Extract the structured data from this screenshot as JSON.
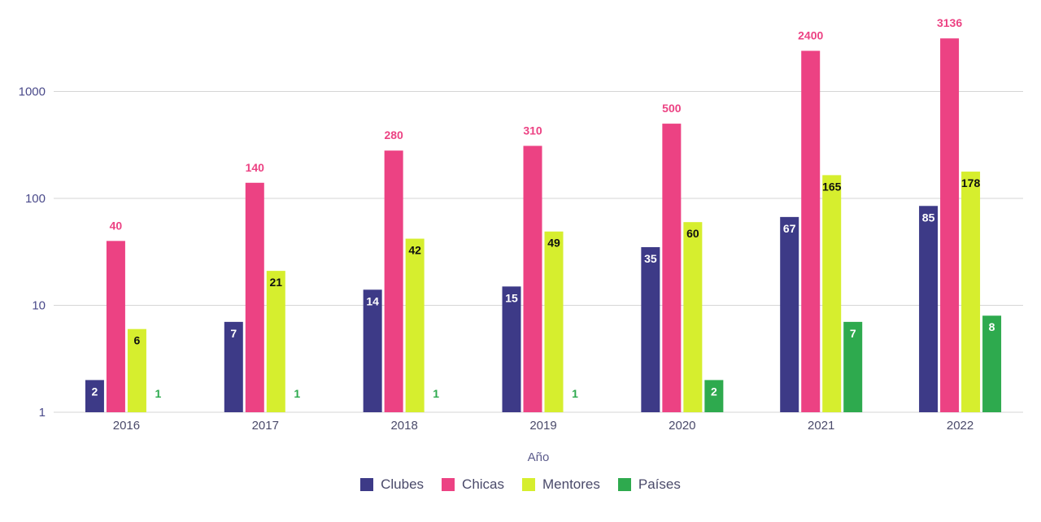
{
  "chart_data": {
    "type": "bar",
    "xlabel": "Año",
    "categories": [
      "2016",
      "2017",
      "2018",
      "2019",
      "2020",
      "2021",
      "2022"
    ],
    "y_scale": "log",
    "ylim": [
      1,
      3500
    ],
    "y_ticks": [
      "1",
      "10",
      "100",
      "1000"
    ],
    "grid": true,
    "legend_position": "bottom",
    "series": [
      {
        "name": "Clubes",
        "color": "#3d3a87",
        "values": [
          2,
          7,
          14,
          15,
          35,
          67,
          85
        ],
        "label_color": "#ffffff",
        "label_inside": true
      },
      {
        "name": "Chicas",
        "color": "#ec4283",
        "values": [
          40,
          140,
          280,
          310,
          500,
          2400,
          3136
        ],
        "label_color": "#ec4283",
        "label_inside": false
      },
      {
        "name": "Mentores",
        "color": "#d6ee2e",
        "values": [
          6,
          21,
          42,
          49,
          60,
          165,
          178
        ],
        "label_color": "#111111",
        "label_inside": true
      },
      {
        "name": "Países",
        "color": "#2eaa4e",
        "values": [
          1,
          1,
          1,
          1,
          2,
          7,
          8
        ],
        "label_color": "#ffffff",
        "label_inside": true
      }
    ],
    "data_labels": [
      [
        "2",
        "7",
        "14",
        "15",
        "35",
        "67",
        "85"
      ],
      [
        "40",
        "140",
        "280",
        "310",
        "500",
        "2400",
        "3136"
      ],
      [
        "6",
        "21",
        "42",
        "49",
        "60",
        "165",
        "178"
      ],
      [
        "1",
        "1",
        "1",
        "1",
        "2",
        "7",
        "8"
      ]
    ]
  }
}
